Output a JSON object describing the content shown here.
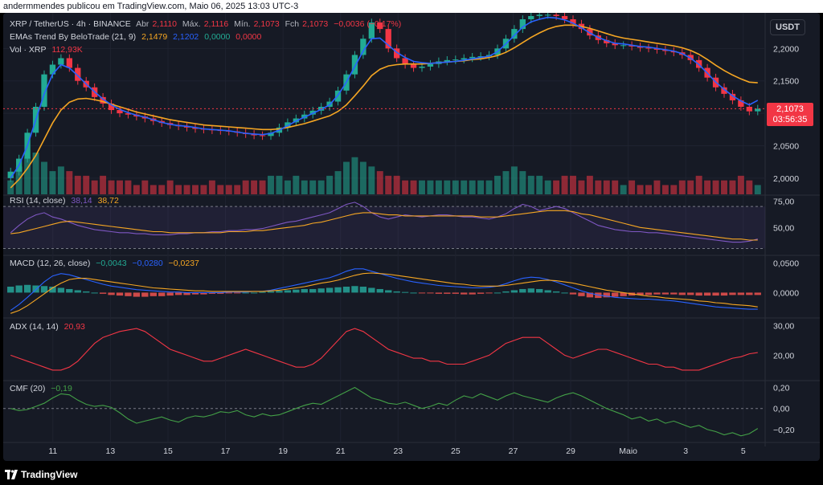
{
  "header": {
    "text": "andermmendes publicou em TradingView.com, Maio 06, 2025 13:03 UTC-3"
  },
  "legend": {
    "symbol": "XRP / TetherUS · 4h · BINANCE",
    "open_label": "Abr",
    "open": "2,1110",
    "high_label": "Máx.",
    "high": "2,1116",
    "low_label": "Mín.",
    "low": "2,1073",
    "close_label": "Fch",
    "close": "2,1073",
    "change": "−0,0036 (−0,17%)",
    "ema_title": "EMAs Trend By BeloTrade (21, 9)",
    "ema_values": [
      "2,1479",
      "2,1202",
      "0,0000",
      "0,0000"
    ],
    "vol_label": "Vol · XRP",
    "vol_value": "112,93K",
    "rsi_title": "RSI (14, close)",
    "rsi_values": [
      "38,14",
      "38,72"
    ],
    "macd_title": "MACD (12, 26, close)",
    "macd_values": [
      "−0,0043",
      "−0,0280",
      "−0,0237"
    ],
    "adx_title": "ADX (14, 14)",
    "adx_value": "20,93",
    "cmf_title": "CMF (20)",
    "cmf_value": "−0,19"
  },
  "currency_button": "USDT",
  "price_tag": {
    "price": "2,1073",
    "countdown": "03:56:35"
  },
  "footer": {
    "logo_text": "TradingView"
  },
  "colors": {
    "background": "#161a25",
    "up": "#22ab94",
    "down": "#f23645",
    "ema_slow": "#f5a623",
    "ema_fast": "#2962ff",
    "rsi": "#7e57c2",
    "rsi_ma": "#f5a623",
    "adx": "#f23645",
    "cmf": "#43a047"
  },
  "chart_data": [
    {
      "type": "candlestick",
      "title": "XRP / TetherUS · 4h · BINANCE",
      "x_labels": [
        "11",
        "13",
        "15",
        "17",
        "19",
        "21",
        "23",
        "25",
        "27",
        "29",
        "Maio",
        "3",
        "5"
      ],
      "y_ticks": [
        "2,2000",
        "2,1500",
        "2,1000",
        "2,0500",
        "2,0000"
      ],
      "ylim": [
        1.975,
        2.245
      ],
      "close_series": [
        2.01,
        2.03,
        2.07,
        2.11,
        2.16,
        2.175,
        2.185,
        2.17,
        2.15,
        2.14,
        2.125,
        2.115,
        2.105,
        2.1,
        2.098,
        2.095,
        2.092,
        2.088,
        2.085,
        2.082,
        2.08,
        2.078,
        2.076,
        2.075,
        2.074,
        2.073,
        2.072,
        2.07,
        2.068,
        2.066,
        2.065,
        2.07,
        2.078,
        2.086,
        2.092,
        2.098,
        2.104,
        2.11,
        2.118,
        2.135,
        2.16,
        2.19,
        2.215,
        2.24,
        2.23,
        2.2,
        2.185,
        2.175,
        2.17,
        2.172,
        2.176,
        2.18,
        2.182,
        2.183,
        2.185,
        2.187,
        2.188,
        2.19,
        2.2,
        2.215,
        2.23,
        2.245,
        2.25,
        2.252,
        2.252,
        2.25,
        2.245,
        2.238,
        2.23,
        2.22,
        2.213,
        2.208,
        2.205,
        2.205,
        2.203,
        2.201,
        2.2,
        2.198,
        2.196,
        2.194,
        2.19,
        2.182,
        2.17,
        2.155,
        2.14,
        2.13,
        2.12,
        2.11,
        2.103,
        2.107
      ],
      "ema_fast_series": [
        2.0,
        2.02,
        2.05,
        2.09,
        2.13,
        2.16,
        2.175,
        2.17,
        2.158,
        2.145,
        2.133,
        2.122,
        2.113,
        2.106,
        2.101,
        2.097,
        2.094,
        2.09,
        2.086,
        2.083,
        2.081,
        2.08,
        2.078,
        2.076,
        2.075,
        2.074,
        2.073,
        2.071,
        2.069,
        2.068,
        2.067,
        2.069,
        2.074,
        2.081,
        2.088,
        2.094,
        2.1,
        2.106,
        2.113,
        2.128,
        2.148,
        2.172,
        2.196,
        2.215,
        2.216,
        2.205,
        2.194,
        2.186,
        2.18,
        2.178,
        2.177,
        2.178,
        2.179,
        2.18,
        2.182,
        2.184,
        2.186,
        2.188,
        2.195,
        2.207,
        2.22,
        2.233,
        2.241,
        2.245,
        2.248,
        2.247,
        2.244,
        2.239,
        2.232,
        2.224,
        2.217,
        2.212,
        2.208,
        2.207,
        2.205,
        2.203,
        2.202,
        2.2,
        2.198,
        2.196,
        2.192,
        2.185,
        2.175,
        2.162,
        2.148,
        2.137,
        2.127,
        2.119,
        2.113,
        2.12
      ],
      "ema_slow_series": [
        1.985,
        1.998,
        2.015,
        2.035,
        2.06,
        2.085,
        2.105,
        2.117,
        2.122,
        2.123,
        2.121,
        2.118,
        2.114,
        2.11,
        2.106,
        2.102,
        2.099,
        2.096,
        2.093,
        2.09,
        2.088,
        2.086,
        2.084,
        2.082,
        2.081,
        2.08,
        2.079,
        2.078,
        2.077,
        2.076,
        2.075,
        2.075,
        2.076,
        2.078,
        2.081,
        2.084,
        2.088,
        2.092,
        2.096,
        2.103,
        2.113,
        2.127,
        2.142,
        2.158,
        2.168,
        2.173,
        2.175,
        2.176,
        2.176,
        2.176,
        2.177,
        2.178,
        2.179,
        2.18,
        2.181,
        2.183,
        2.184,
        2.186,
        2.189,
        2.194,
        2.201,
        2.209,
        2.217,
        2.224,
        2.23,
        2.234,
        2.236,
        2.236,
        2.234,
        2.231,
        2.227,
        2.223,
        2.219,
        2.216,
        2.214,
        2.212,
        2.21,
        2.208,
        2.206,
        2.204,
        2.201,
        2.197,
        2.191,
        2.183,
        2.174,
        2.166,
        2.159,
        2.153,
        2.148,
        2.147
      ]
    },
    {
      "type": "bar",
      "title": "Vol · XRP",
      "series": [
        {
          "name": "Vol",
          "values": [
            3,
            6,
            8,
            9,
            7,
            5,
            6,
            5,
            4,
            4,
            3,
            4,
            3,
            3,
            3,
            2,
            3,
            2,
            2,
            3,
            2,
            2,
            2,
            2,
            3,
            2,
            2,
            2,
            3,
            3,
            3,
            4,
            4,
            3,
            4,
            3,
            3,
            3,
            4,
            5,
            7,
            8,
            7,
            6,
            5,
            4,
            4,
            3,
            3,
            3,
            3,
            3,
            3,
            3,
            3,
            3,
            3,
            3,
            4,
            5,
            6,
            5,
            4,
            4,
            3,
            3,
            4,
            4,
            3,
            4,
            3,
            3,
            3,
            2,
            3,
            2,
            2,
            3,
            2,
            2,
            3,
            3,
            4,
            3,
            3,
            3,
            3,
            4,
            3,
            2
          ]
        }
      ]
    },
    {
      "type": "line",
      "title": "RSI (14, close)",
      "y_ticks": [
        "75,00",
        "50,00"
      ],
      "ylim": [
        25,
        80
      ],
      "series": [
        {
          "name": "RSI",
          "values": [
            45,
            52,
            58,
            62,
            64,
            60,
            58,
            55,
            52,
            50,
            48,
            47,
            46,
            45,
            45,
            44,
            44,
            43,
            43,
            43,
            44,
            44,
            45,
            45,
            46,
            46,
            47,
            47,
            48,
            48,
            49,
            51,
            53,
            55,
            56,
            58,
            60,
            62,
            64,
            68,
            72,
            74,
            70,
            64,
            60,
            58,
            60,
            62,
            61,
            60,
            61,
            62,
            62,
            61,
            60,
            60,
            59,
            58,
            60,
            63,
            68,
            72,
            70,
            66,
            68,
            70,
            68,
            64,
            60,
            56,
            52,
            50,
            48,
            47,
            46,
            46,
            45,
            45,
            44,
            43,
            42,
            41,
            40,
            39,
            38,
            37,
            36,
            36,
            37,
            39
          ]
        },
        {
          "name": "RSI MA",
          "values": [
            44,
            45,
            47,
            49,
            51,
            53,
            55,
            56,
            55,
            54,
            53,
            52,
            51,
            50,
            49,
            48,
            47,
            46,
            46,
            45,
            45,
            45,
            45,
            45,
            45,
            45,
            46,
            46,
            46,
            47,
            47,
            48,
            49,
            50,
            51,
            52,
            54,
            55,
            57,
            59,
            61,
            63,
            64,
            64,
            63,
            62,
            62,
            61,
            61,
            61,
            61,
            61,
            61,
            61,
            61,
            61,
            60,
            60,
            60,
            61,
            62,
            63,
            64,
            65,
            66,
            66,
            66,
            65,
            63,
            62,
            60,
            58,
            56,
            54,
            52,
            50,
            49,
            48,
            47,
            46,
            45,
            44,
            43,
            42,
            41,
            40,
            39,
            39,
            38,
            38
          ]
        }
      ]
    },
    {
      "type": "bar",
      "title": "MACD (12, 26, close)",
      "y_ticks": [
        "0,0500",
        "0,0000"
      ],
      "ylim": [
        -0.04,
        0.06
      ],
      "series": [
        {
          "name": "Histogram",
          "values": [
            0.01,
            0.012,
            0.013,
            0.012,
            0.011,
            0.01,
            0.008,
            0.006,
            0.004,
            0.002,
            0.0,
            -0.002,
            -0.004,
            -0.005,
            -0.006,
            -0.007,
            -0.007,
            -0.006,
            -0.006,
            -0.005,
            -0.004,
            -0.004,
            -0.003,
            -0.003,
            -0.002,
            -0.002,
            -0.001,
            -0.001,
            0.0,
            0.0,
            0.001,
            0.002,
            0.003,
            0.004,
            0.005,
            0.006,
            0.006,
            0.007,
            0.008,
            0.009,
            0.01,
            0.011,
            0.01,
            0.008,
            0.006,
            0.004,
            0.002,
            0.001,
            0.0,
            -0.001,
            -0.001,
            -0.002,
            -0.002,
            -0.002,
            -0.003,
            -0.003,
            -0.002,
            -0.001,
            0.0,
            0.002,
            0.004,
            0.006,
            0.007,
            0.006,
            0.004,
            0.002,
            0.0,
            -0.003,
            -0.006,
            -0.008,
            -0.009,
            -0.008,
            -0.007,
            -0.006,
            -0.005,
            -0.004,
            -0.004,
            -0.003,
            -0.003,
            -0.003,
            -0.004,
            -0.004,
            -0.005,
            -0.005,
            -0.005,
            -0.005,
            -0.004,
            -0.004,
            -0.004,
            -0.004
          ]
        },
        {
          "name": "MACD",
          "values": [
            -0.03,
            -0.02,
            -0.008,
            0.005,
            0.018,
            0.028,
            0.032,
            0.03,
            0.026,
            0.022,
            0.018,
            0.014,
            0.011,
            0.009,
            0.007,
            0.005,
            0.004,
            0.003,
            0.002,
            0.001,
            0.001,
            0.0,
            0.0,
            0.0,
            0.0,
            0.0,
            0.001,
            0.001,
            0.001,
            0.002,
            0.002,
            0.004,
            0.007,
            0.01,
            0.013,
            0.016,
            0.019,
            0.022,
            0.025,
            0.03,
            0.036,
            0.04,
            0.04,
            0.036,
            0.032,
            0.028,
            0.024,
            0.021,
            0.018,
            0.016,
            0.014,
            0.012,
            0.011,
            0.01,
            0.009,
            0.008,
            0.008,
            0.009,
            0.011,
            0.015,
            0.02,
            0.024,
            0.026,
            0.025,
            0.022,
            0.018,
            0.013,
            0.008,
            0.003,
            -0.001,
            -0.004,
            -0.006,
            -0.008,
            -0.009,
            -0.01,
            -0.011,
            -0.011,
            -0.012,
            -0.013,
            -0.014,
            -0.016,
            -0.018,
            -0.02,
            -0.022,
            -0.024,
            -0.025,
            -0.026,
            -0.027,
            -0.028,
            -0.028
          ]
        },
        {
          "name": "Signal",
          "values": [
            -0.035,
            -0.03,
            -0.022,
            -0.012,
            -0.002,
            0.008,
            0.016,
            0.022,
            0.024,
            0.024,
            0.022,
            0.02,
            0.018,
            0.016,
            0.014,
            0.012,
            0.01,
            0.008,
            0.007,
            0.006,
            0.005,
            0.004,
            0.003,
            0.003,
            0.002,
            0.002,
            0.002,
            0.002,
            0.002,
            0.002,
            0.002,
            0.003,
            0.004,
            0.006,
            0.008,
            0.01,
            0.013,
            0.016,
            0.018,
            0.021,
            0.025,
            0.029,
            0.032,
            0.033,
            0.032,
            0.031,
            0.029,
            0.027,
            0.025,
            0.023,
            0.021,
            0.019,
            0.017,
            0.015,
            0.014,
            0.012,
            0.011,
            0.011,
            0.011,
            0.012,
            0.014,
            0.016,
            0.018,
            0.02,
            0.021,
            0.02,
            0.018,
            0.016,
            0.013,
            0.01,
            0.007,
            0.004,
            0.002,
            0.0,
            -0.002,
            -0.004,
            -0.006,
            -0.007,
            -0.009,
            -0.01,
            -0.011,
            -0.012,
            -0.014,
            -0.015,
            -0.017,
            -0.018,
            -0.02,
            -0.021,
            -0.022,
            -0.024
          ]
        }
      ]
    },
    {
      "type": "line",
      "title": "ADX (14, 14)",
      "y_ticks": [
        "30,00",
        "20,00"
      ],
      "ylim": [
        12,
        32
      ],
      "series": [
        {
          "name": "ADX",
          "values": [
            20,
            19,
            18,
            17,
            16,
            15,
            15,
            16,
            18,
            21,
            24,
            26,
            27,
            28,
            28.5,
            29,
            28,
            26,
            24,
            22,
            21,
            20,
            19,
            18,
            18,
            19,
            20,
            21,
            22,
            21,
            20,
            19,
            18,
            17,
            16,
            16,
            17,
            19,
            22,
            25,
            28,
            29,
            28,
            26,
            24,
            22,
            21,
            20,
            19,
            19,
            18,
            18,
            17,
            17,
            17,
            18,
            19,
            20,
            22,
            24,
            25,
            26,
            26,
            26,
            24,
            22,
            20,
            19,
            20,
            21,
            22,
            22,
            21,
            20,
            19,
            18,
            17,
            17,
            16,
            16,
            15,
            15,
            15,
            16,
            17,
            18,
            19,
            19.5,
            20.5,
            20.9
          ]
        }
      ]
    },
    {
      "type": "line",
      "title": "CMF (20)",
      "y_ticks": [
        "0,20",
        "0,00",
        "−0,20"
      ],
      "ylim": [
        -0.3,
        0.25
      ],
      "series": [
        {
          "name": "CMF",
          "values": [
            0.0,
            -0.02,
            -0.01,
            0.02,
            0.05,
            0.1,
            0.14,
            0.13,
            0.08,
            0.04,
            0.02,
            0.03,
            0.01,
            -0.04,
            -0.1,
            -0.14,
            -0.12,
            -0.1,
            -0.08,
            -0.11,
            -0.13,
            -0.09,
            -0.07,
            -0.08,
            -0.06,
            -0.03,
            -0.04,
            -0.02,
            -0.06,
            -0.08,
            -0.05,
            -0.07,
            -0.06,
            -0.03,
            0.0,
            0.03,
            0.05,
            0.04,
            0.08,
            0.12,
            0.16,
            0.2,
            0.15,
            0.1,
            0.08,
            0.05,
            0.04,
            0.06,
            0.03,
            0.0,
            0.02,
            0.05,
            0.03,
            0.08,
            0.12,
            0.1,
            0.14,
            0.11,
            0.08,
            0.12,
            0.15,
            0.12,
            0.1,
            0.08,
            0.06,
            0.1,
            0.13,
            0.15,
            0.12,
            0.08,
            0.04,
            0.0,
            -0.03,
            -0.06,
            -0.1,
            -0.08,
            -0.12,
            -0.1,
            -0.14,
            -0.12,
            -0.15,
            -0.18,
            -0.16,
            -0.2,
            -0.22,
            -0.25,
            -0.23,
            -0.26,
            -0.24,
            -0.19
          ]
        }
      ]
    }
  ]
}
